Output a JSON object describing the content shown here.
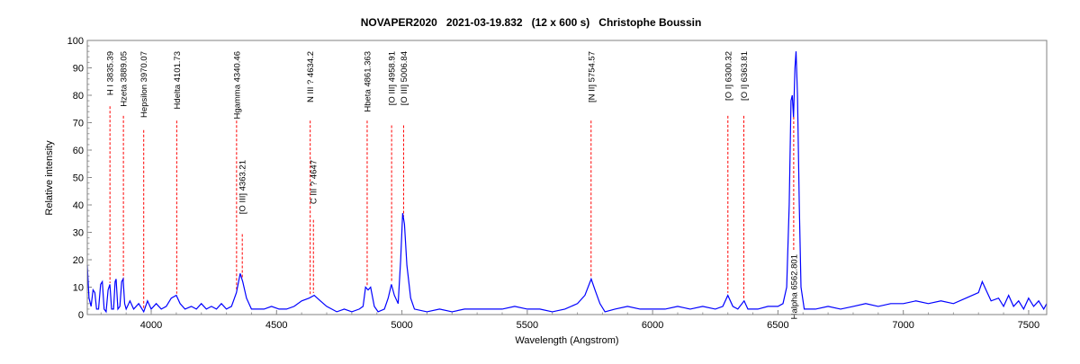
{
  "chart_data": {
    "type": "line",
    "title": "NOVAPER2020   2021-03-19.832   (12 x 600 s)   Christophe Boussin",
    "xlabel": "Wavelength (Angstrom)",
    "ylabel": "Relative intensity",
    "xlim": [
      3745,
      7572
    ],
    "ylim": [
      0,
      100
    ],
    "x_ticks": [
      4000,
      4500,
      5000,
      5500,
      6000,
      6500,
      7000,
      7500
    ],
    "y_ticks": [
      0,
      10,
      20,
      30,
      40,
      50,
      60,
      70,
      80,
      90,
      100
    ],
    "grid": false,
    "series_color": "#0000ff",
    "line_marker_color": "#ff0000",
    "series": [
      {
        "points": [
          [
            3745,
            18
          ],
          [
            3752,
            6
          ],
          [
            3760,
            3
          ],
          [
            3768,
            9
          ],
          [
            3775,
            8
          ],
          [
            3782,
            2
          ],
          [
            3790,
            2
          ],
          [
            3798,
            11
          ],
          [
            3805,
            12
          ],
          [
            3812,
            2
          ],
          [
            3820,
            1
          ],
          [
            3828,
            9
          ],
          [
            3835,
            11
          ],
          [
            3842,
            2
          ],
          [
            3850,
            2
          ],
          [
            3856,
            12
          ],
          [
            3860,
            13
          ],
          [
            3867,
            2
          ],
          [
            3875,
            3
          ],
          [
            3882,
            12
          ],
          [
            3888,
            13
          ],
          [
            3894,
            4
          ],
          [
            3900,
            2
          ],
          [
            3915,
            5
          ],
          [
            3930,
            2
          ],
          [
            3950,
            4
          ],
          [
            3970,
            1
          ],
          [
            3985,
            5
          ],
          [
            4000,
            2
          ],
          [
            4020,
            4
          ],
          [
            4040,
            2
          ],
          [
            4060,
            3
          ],
          [
            4080,
            6
          ],
          [
            4100,
            7
          ],
          [
            4115,
            4
          ],
          [
            4135,
            2
          ],
          [
            4160,
            3
          ],
          [
            4180,
            2
          ],
          [
            4200,
            4
          ],
          [
            4220,
            2
          ],
          [
            4240,
            3
          ],
          [
            4260,
            2
          ],
          [
            4280,
            4
          ],
          [
            4300,
            2
          ],
          [
            4320,
            3
          ],
          [
            4340,
            8
          ],
          [
            4355,
            15
          ],
          [
            4365,
            12
          ],
          [
            4380,
            6
          ],
          [
            4400,
            2
          ],
          [
            4420,
            2
          ],
          [
            4450,
            2
          ],
          [
            4480,
            3
          ],
          [
            4510,
            2
          ],
          [
            4540,
            2
          ],
          [
            4570,
            3
          ],
          [
            4600,
            5
          ],
          [
            4630,
            6
          ],
          [
            4650,
            7
          ],
          [
            4675,
            5
          ],
          [
            4700,
            3
          ],
          [
            4720,
            2
          ],
          [
            4740,
            1
          ],
          [
            4770,
            2
          ],
          [
            4800,
            1
          ],
          [
            4830,
            2
          ],
          [
            4845,
            3
          ],
          [
            4855,
            10
          ],
          [
            4865,
            9
          ],
          [
            4875,
            10
          ],
          [
            4890,
            3
          ],
          [
            4905,
            1
          ],
          [
            4930,
            2
          ],
          [
            4945,
            6
          ],
          [
            4958,
            11
          ],
          [
            4970,
            7
          ],
          [
            4985,
            4
          ],
          [
            4995,
            20
          ],
          [
            5003,
            37
          ],
          [
            5010,
            33
          ],
          [
            5020,
            18
          ],
          [
            5035,
            6
          ],
          [
            5050,
            2
          ],
          [
            5100,
            1
          ],
          [
            5150,
            2
          ],
          [
            5200,
            1
          ],
          [
            5250,
            2
          ],
          [
            5300,
            2
          ],
          [
            5350,
            2
          ],
          [
            5400,
            2
          ],
          [
            5450,
            3
          ],
          [
            5500,
            2
          ],
          [
            5550,
            2
          ],
          [
            5600,
            1
          ],
          [
            5650,
            2
          ],
          [
            5700,
            4
          ],
          [
            5730,
            7
          ],
          [
            5755,
            13
          ],
          [
            5770,
            9
          ],
          [
            5790,
            4
          ],
          [
            5810,
            1
          ],
          [
            5850,
            2
          ],
          [
            5900,
            3
          ],
          [
            5950,
            2
          ],
          [
            6000,
            2
          ],
          [
            6050,
            2
          ],
          [
            6100,
            3
          ],
          [
            6150,
            2
          ],
          [
            6200,
            3
          ],
          [
            6250,
            2
          ],
          [
            6280,
            3
          ],
          [
            6300,
            7
          ],
          [
            6320,
            3
          ],
          [
            6340,
            2
          ],
          [
            6365,
            5
          ],
          [
            6380,
            2
          ],
          [
            6420,
            2
          ],
          [
            6460,
            3
          ],
          [
            6500,
            3
          ],
          [
            6520,
            4
          ],
          [
            6535,
            10
          ],
          [
            6545,
            40
          ],
          [
            6552,
            78
          ],
          [
            6557,
            80
          ],
          [
            6562,
            72
          ],
          [
            6568,
            90
          ],
          [
            6572,
            96
          ],
          [
            6578,
            80
          ],
          [
            6585,
            40
          ],
          [
            6592,
            10
          ],
          [
            6605,
            2
          ],
          [
            6650,
            2
          ],
          [
            6700,
            3
          ],
          [
            6750,
            2
          ],
          [
            6800,
            3
          ],
          [
            6850,
            4
          ],
          [
            6900,
            3
          ],
          [
            6950,
            4
          ],
          [
            7000,
            4
          ],
          [
            7050,
            5
          ],
          [
            7100,
            4
          ],
          [
            7150,
            5
          ],
          [
            7200,
            4
          ],
          [
            7250,
            6
          ],
          [
            7300,
            8
          ],
          [
            7315,
            12
          ],
          [
            7330,
            9
          ],
          [
            7350,
            5
          ],
          [
            7380,
            6
          ],
          [
            7400,
            3
          ],
          [
            7420,
            7
          ],
          [
            7440,
            3
          ],
          [
            7460,
            5
          ],
          [
            7480,
            2
          ],
          [
            7500,
            6
          ],
          [
            7520,
            3
          ],
          [
            7540,
            5
          ],
          [
            7560,
            2
          ],
          [
            7572,
            4
          ]
        ]
      }
    ],
    "line_ids": [
      {
        "label": "H I 3835.39",
        "wavelength": 3835.39,
        "placement": "top"
      },
      {
        "label": "Hzeta 3889.05",
        "wavelength": 3889.05,
        "placement": "top"
      },
      {
        "label": "Hepsilon 3970.07",
        "wavelength": 3970.07,
        "placement": "top"
      },
      {
        "label": "Hdelta 4101.73",
        "wavelength": 4101.73,
        "placement": "top"
      },
      {
        "label": "Hgamma 4340.46",
        "wavelength": 4340.46,
        "placement": "top"
      },
      {
        "label": "[O III] 4363.21",
        "wavelength": 4363.21,
        "placement": "middle"
      },
      {
        "label": "N III ? 4634.2",
        "wavelength": 4634.2,
        "placement": "top"
      },
      {
        "label": "C III ? 4647",
        "wavelength": 4647,
        "placement": "middle"
      },
      {
        "label": "Hbeta 4861.363",
        "wavelength": 4861.363,
        "placement": "top"
      },
      {
        "label": "[O III] 4958.91",
        "wavelength": 4958.91,
        "placement": "top"
      },
      {
        "label": "[O III] 5006.84",
        "wavelength": 5006.84,
        "placement": "top"
      },
      {
        "label": "[N II] 5754.57",
        "wavelength": 5754.57,
        "placement": "top"
      },
      {
        "label": "[O I] 6300.32",
        "wavelength": 6300.32,
        "placement": "top"
      },
      {
        "label": "[O I] 6363.81",
        "wavelength": 6363.81,
        "placement": "top"
      },
      {
        "label": "Halpha 6562.801",
        "wavelength": 6562.801,
        "placement": "bottom"
      }
    ]
  }
}
